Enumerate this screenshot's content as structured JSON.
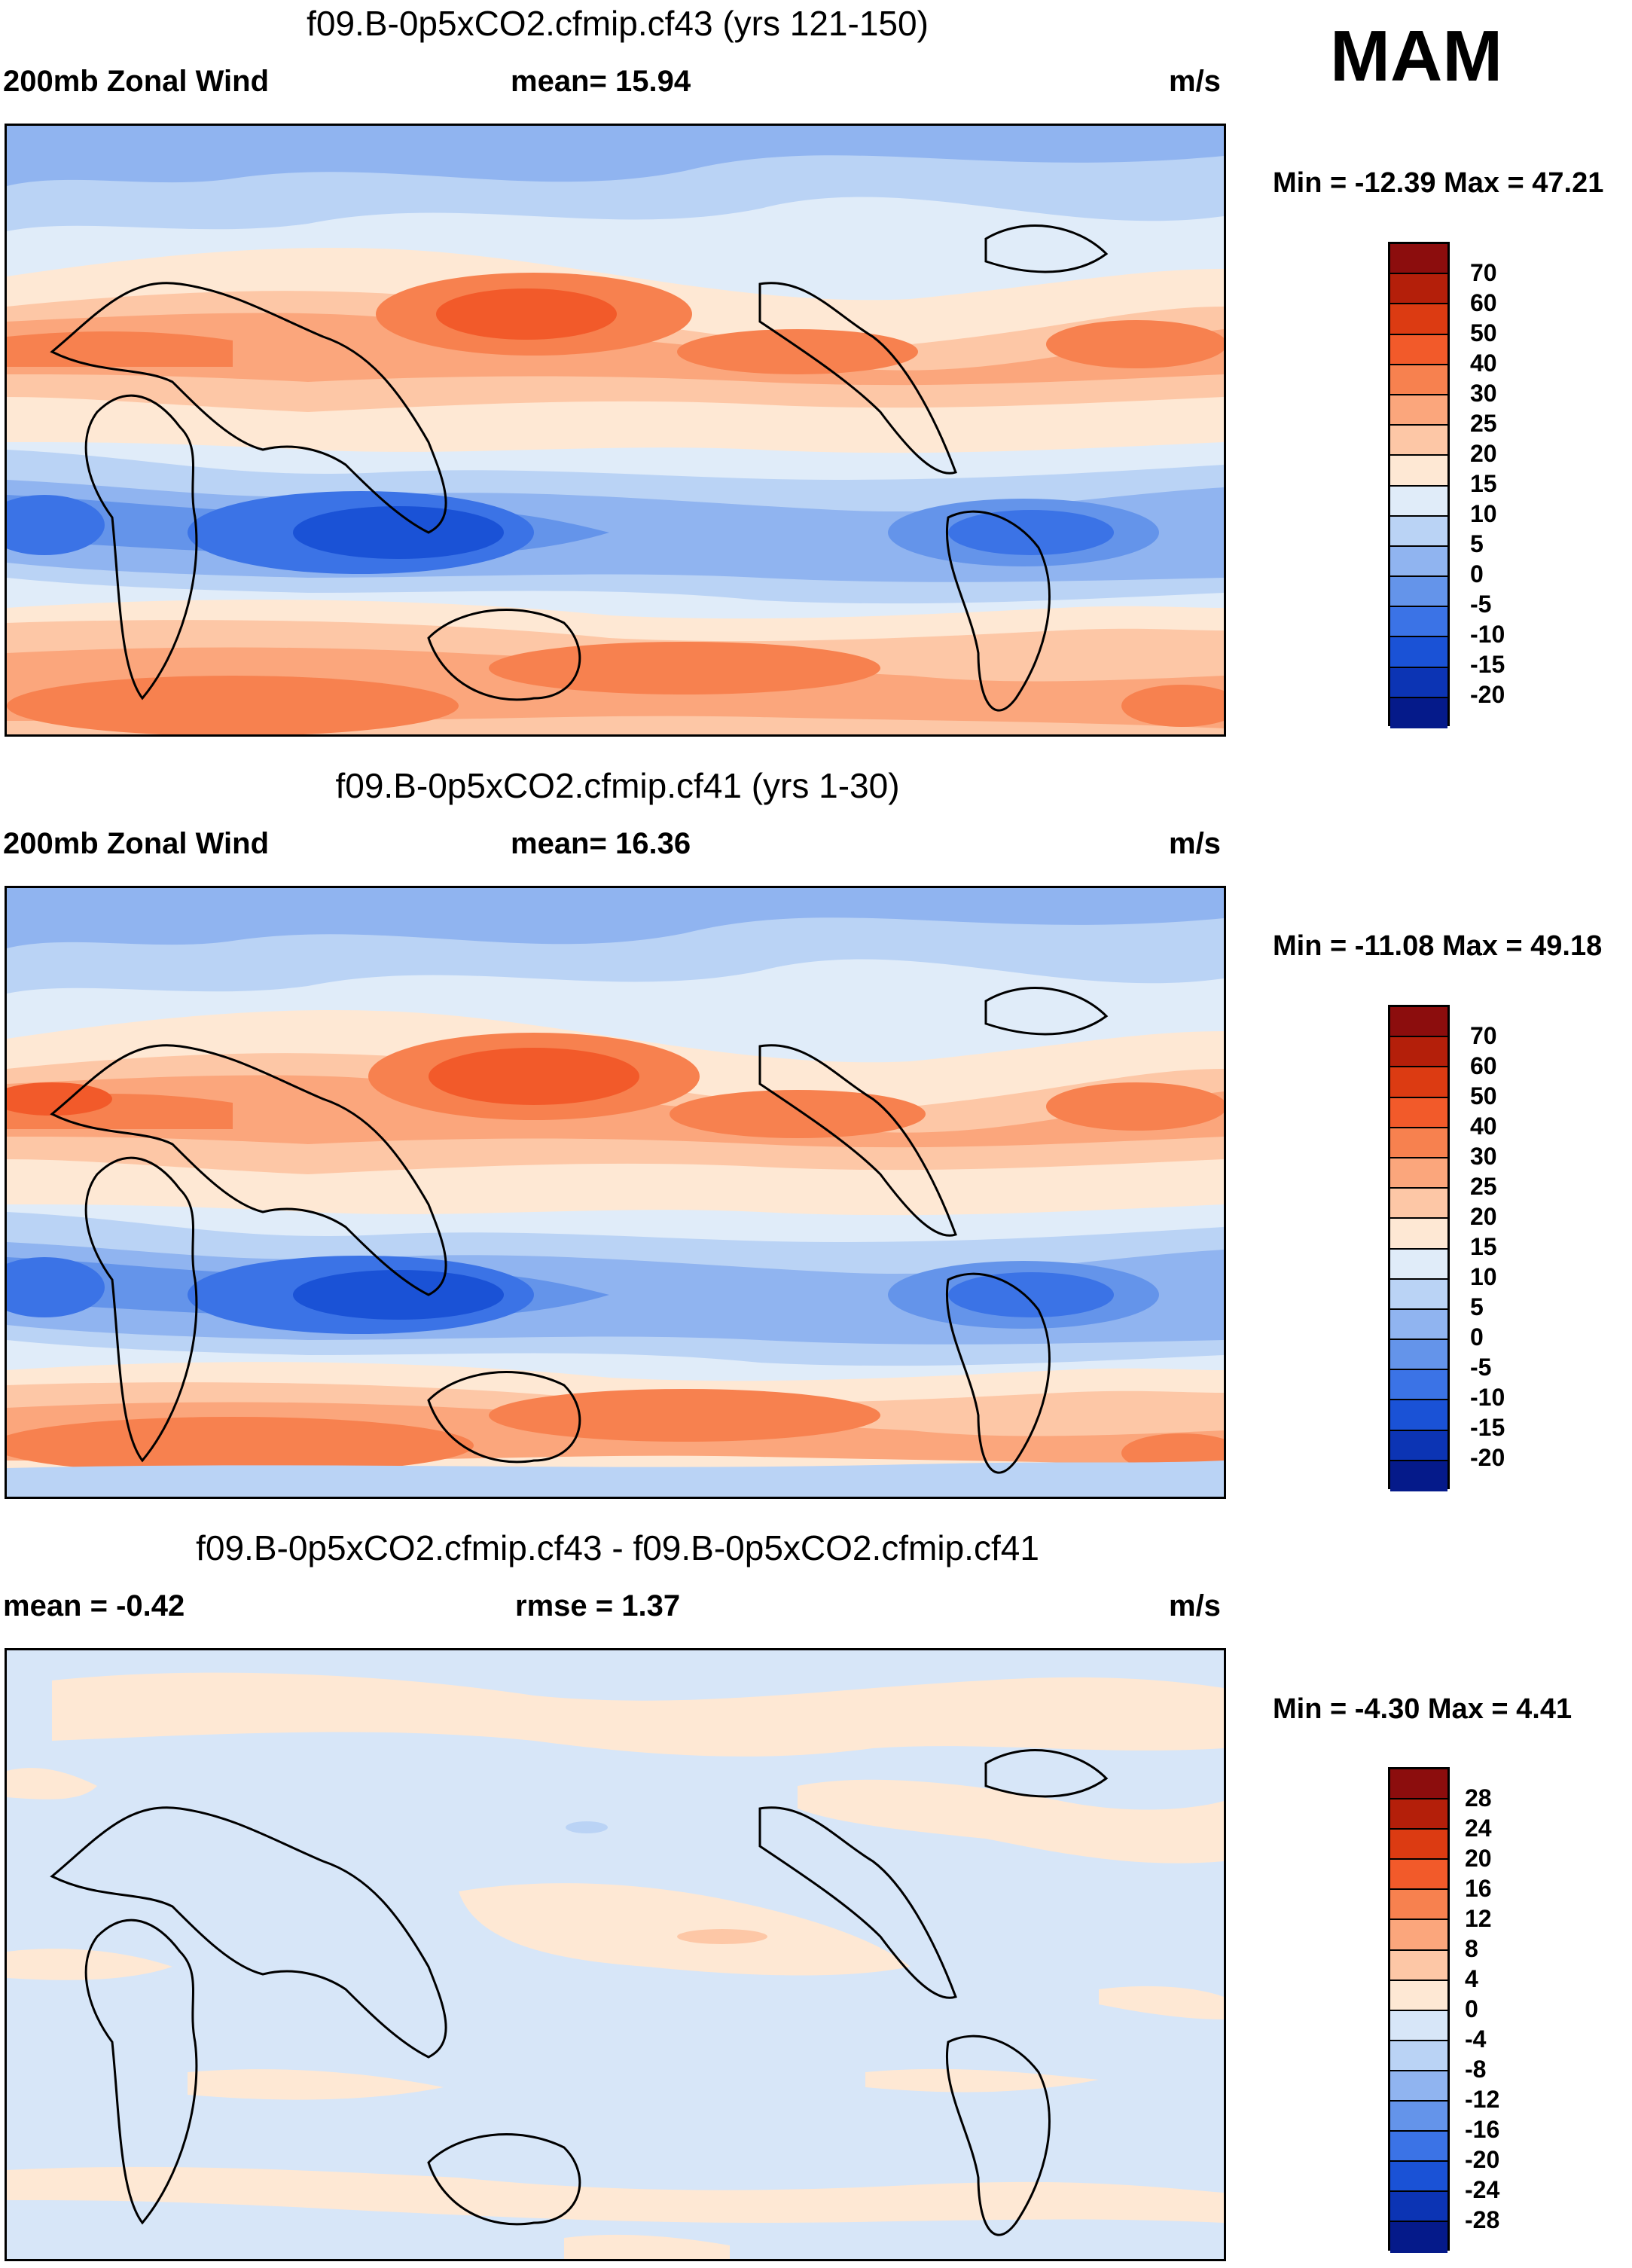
{
  "season": "MAM",
  "panels": [
    {
      "title": "f09.B-0p5xCO2.cfmip.cf43 (yrs 121-150)",
      "left_label": "200mb Zonal Wind",
      "center_label": "mean=  15.94",
      "units": "m/s",
      "minmax": "Min = -12.39 Max =  47.21"
    },
    {
      "title": "f09.B-0p5xCO2.cfmip.cf41 (yrs 1-30)",
      "left_label": "200mb Zonal Wind",
      "center_label": "mean=  16.36",
      "units": "m/s",
      "minmax": "Min = -11.08 Max =  49.18"
    },
    {
      "title": "f09.B-0p5xCO2.cfmip.cf43 - f09.B-0p5xCO2.cfmip.cf41",
      "left_label": "mean =  -0.42",
      "center_label": "rmse =   1.37",
      "units": "m/s",
      "minmax": "Min =  -4.30 Max =   4.41"
    }
  ],
  "colorbar_field": {
    "levels": [
      "70",
      "60",
      "50",
      "40",
      "30",
      "25",
      "20",
      "15",
      "10",
      "5",
      "0",
      "-5",
      "-10",
      "-15",
      "-20"
    ],
    "colors": [
      "#8c0d0d",
      "#b41f0a",
      "#dc3b12",
      "#f25a2a",
      "#f7814f",
      "#fba67c",
      "#fdc7a6",
      "#fee8d4",
      "#e0ecf9",
      "#bad3f5",
      "#90b4f0",
      "#6494ea",
      "#3b73e6",
      "#1a52d6",
      "#0c34b4",
      "#051a8a"
    ]
  },
  "colorbar_diff": {
    "levels": [
      "28",
      "24",
      "20",
      "16",
      "12",
      "8",
      "4",
      "0",
      "-4",
      "-8",
      "-12",
      "-16",
      "-20",
      "-24",
      "-28"
    ],
    "colors": [
      "#8c0d0d",
      "#b41f0a",
      "#dc3b12",
      "#f25a2a",
      "#f7814f",
      "#fba67c",
      "#fdc7a6",
      "#fee8d4",
      "#d7e6f8",
      "#bad3f5",
      "#90b4f0",
      "#6494ea",
      "#3b73e6",
      "#1a52d6",
      "#0c34b4",
      "#051a8a"
    ]
  }
}
